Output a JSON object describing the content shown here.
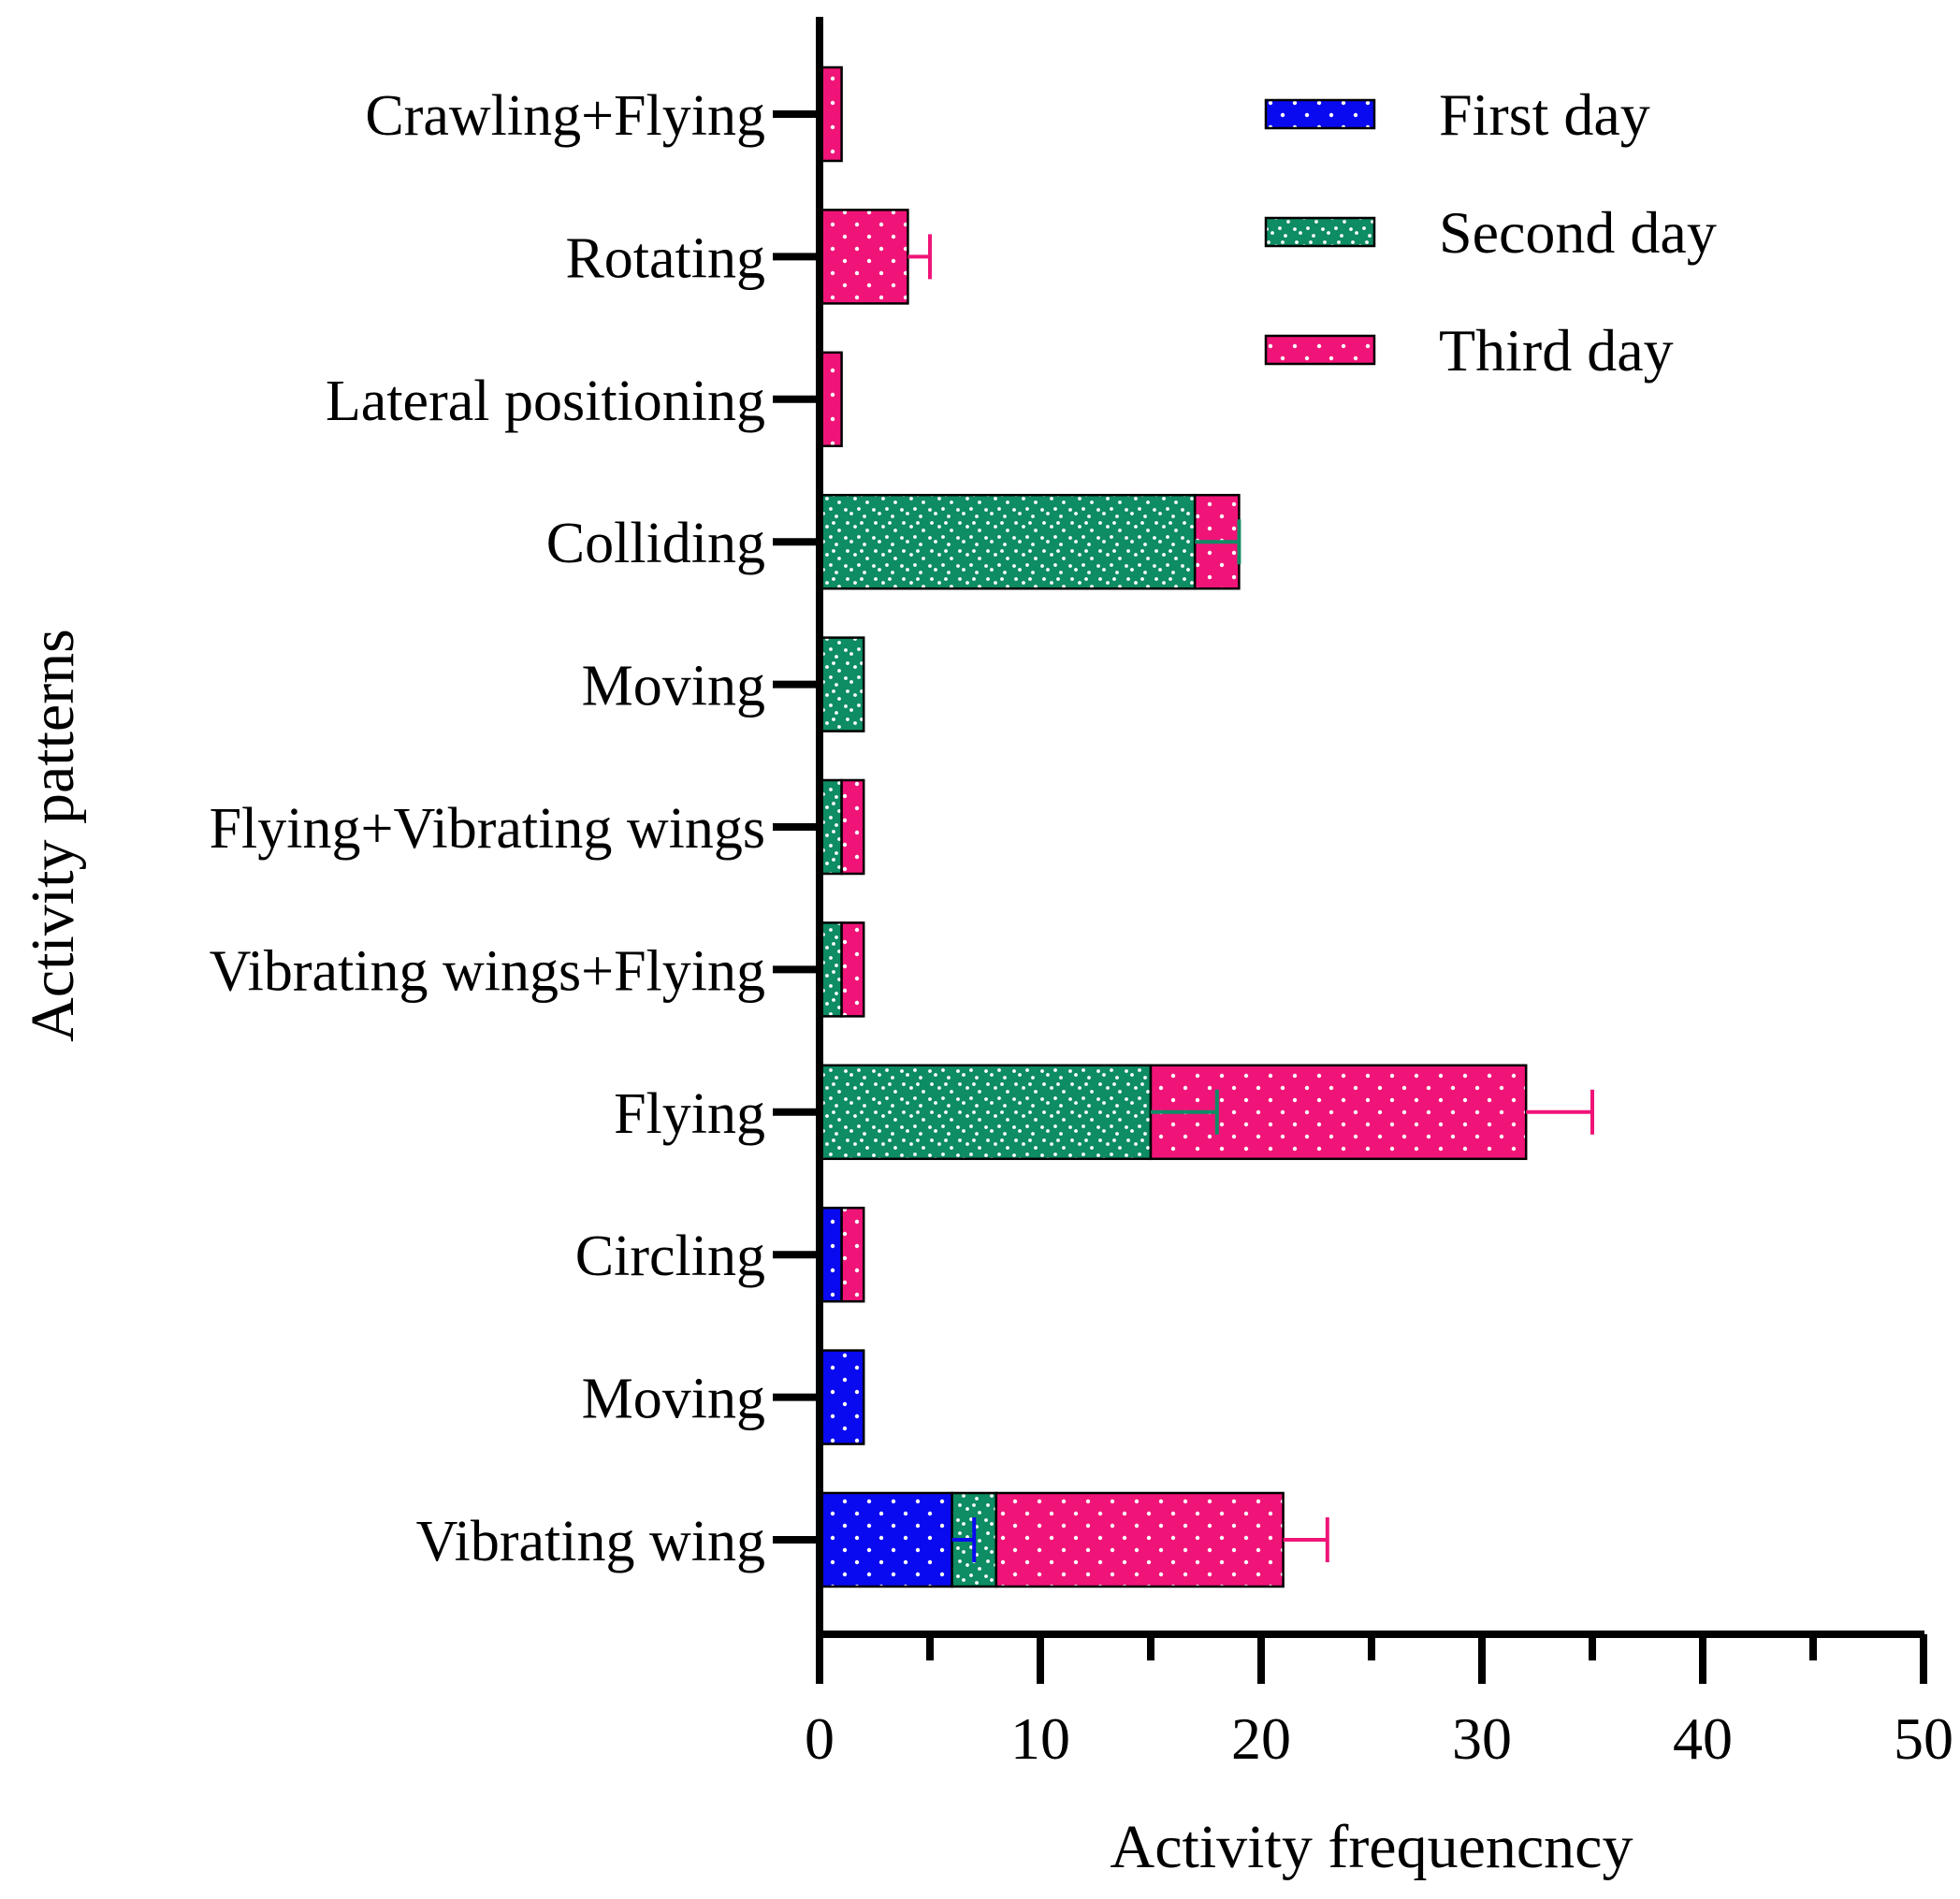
{
  "chart_data": {
    "type": "bar",
    "orientation": "horizontal",
    "stacked": true,
    "xlabel": "Activity frequencncy",
    "ylabel": "Activity patterns",
    "xlim": [
      0,
      50
    ],
    "xticks": [
      0,
      10,
      20,
      30,
      40,
      50
    ],
    "grid": false,
    "legend": "top-right",
    "categories": [
      "Vibrating wing",
      "Moving",
      "Circling",
      "Flying",
      "Vibrating wings+Flying",
      "Flying+Vibrating wings",
      "Moving",
      "Colliding",
      "Lateral positioning",
      "Rotating",
      "Crawling+Flying"
    ],
    "series": [
      {
        "name": "First day",
        "color": "#0a0af0",
        "pattern": "dots",
        "values": [
          6,
          2,
          1,
          0,
          0,
          0,
          0,
          0,
          0,
          0,
          0
        ],
        "error": [
          1,
          null,
          null,
          null,
          null,
          null,
          null,
          null,
          null,
          null,
          null
        ]
      },
      {
        "name": "Second day",
        "color": "#0e8c64",
        "pattern": "speckle",
        "values": [
          2,
          0,
          0,
          15,
          1,
          1,
          2,
          17,
          0,
          0,
          0
        ],
        "error": [
          null,
          null,
          null,
          3,
          null,
          null,
          null,
          2,
          null,
          null,
          null
        ]
      },
      {
        "name": "Third day",
        "color": "#f01478",
        "pattern": "dots",
        "values": [
          13,
          0,
          1,
          17,
          1,
          1,
          0,
          2,
          1,
          4,
          1
        ],
        "error": [
          2,
          null,
          null,
          3,
          null,
          null,
          null,
          null,
          null,
          1,
          null
        ]
      }
    ]
  }
}
